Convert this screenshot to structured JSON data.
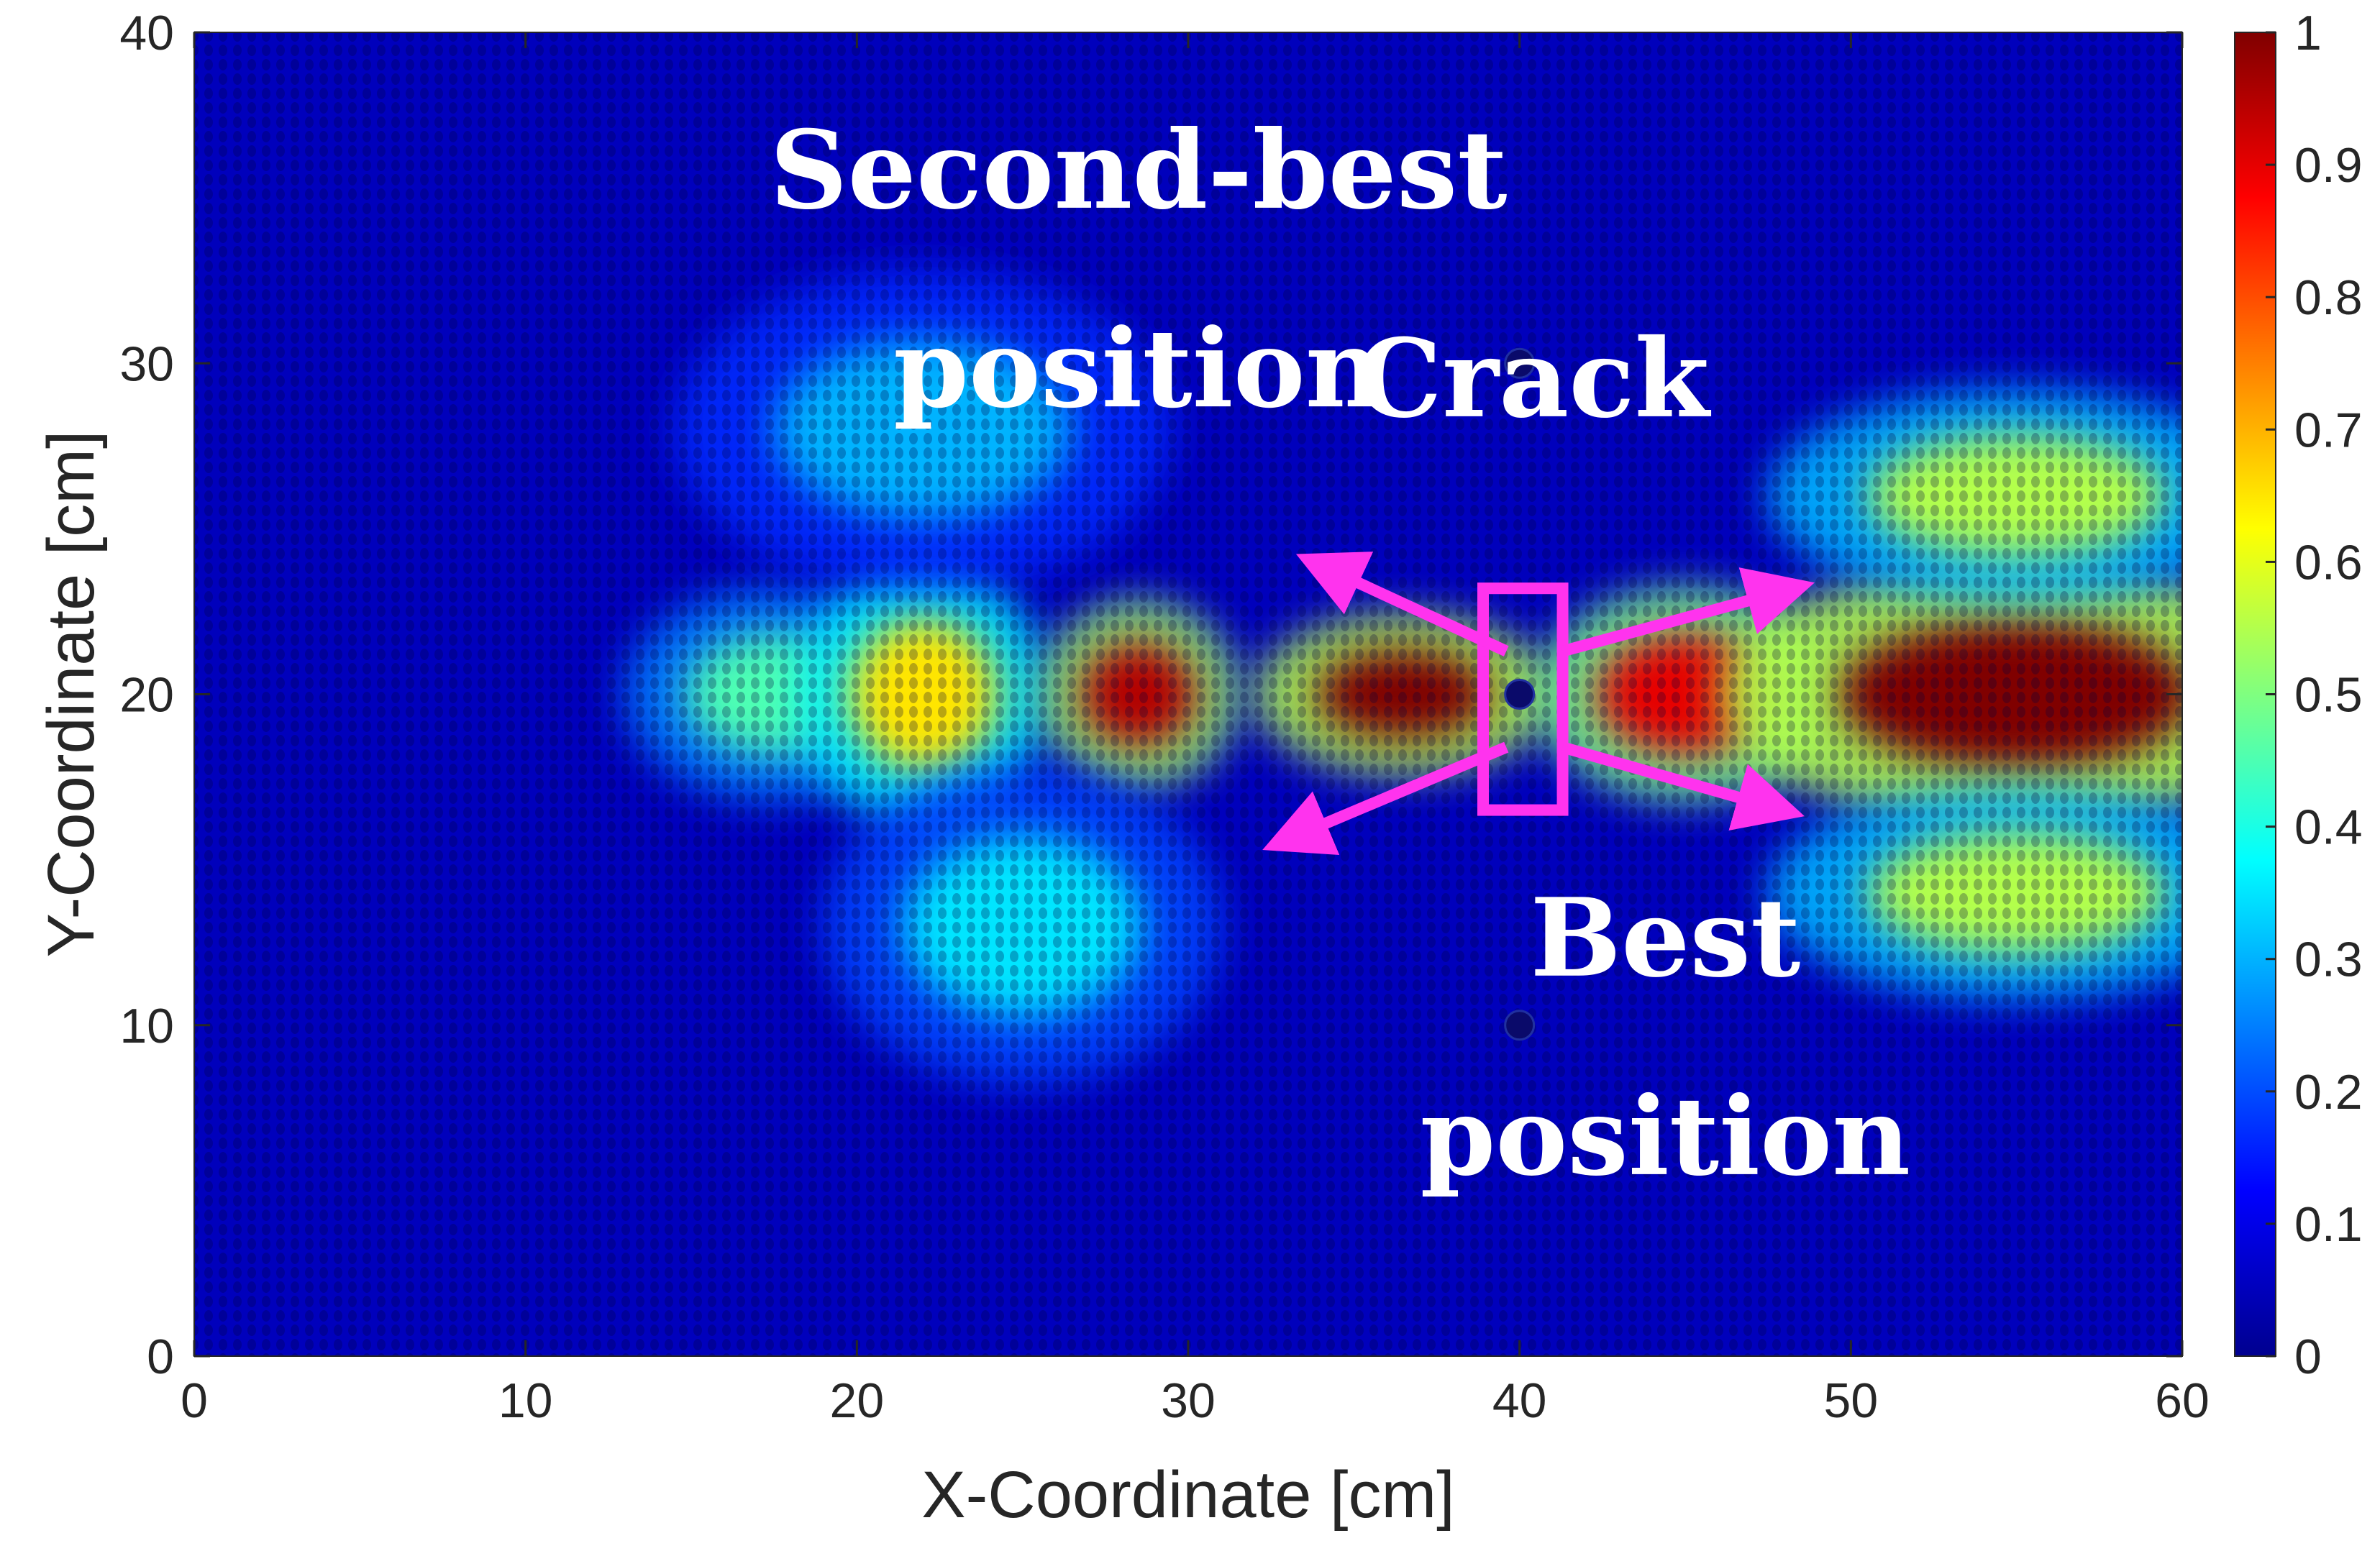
{
  "chart_data": {
    "type": "heatmap",
    "title": "",
    "xlabel": "X-Coordinate [cm]",
    "ylabel": "Y-Coordinate [cm]",
    "xlim": [
      0,
      60
    ],
    "ylim": [
      0,
      40
    ],
    "xticks": [
      "0",
      "10",
      "20",
      "30",
      "40",
      "50",
      "60"
    ],
    "yticks": [
      "0",
      "10",
      "20",
      "30",
      "40"
    ],
    "colorbar": {
      "range": [
        0,
        1
      ],
      "ticks": [
        "0",
        "0.1",
        "0.2",
        "0.3",
        "0.4",
        "0.5",
        "0.6",
        "0.7",
        "0.8",
        "0.9",
        "1"
      ],
      "colormap": "jet"
    },
    "field": {
      "description_source": "wave-field amplitude map",
      "background_value": 0.05,
      "features": [
        {
          "x": 17.5,
          "y": 20,
          "width": 6,
          "height": 4,
          "value": 0.45
        },
        {
          "x": 22,
          "y": 20,
          "width": 5,
          "height": 5,
          "value": 0.65
        },
        {
          "x": 28.5,
          "y": 20,
          "width": 4,
          "height": 3.5,
          "value": 0.95
        },
        {
          "x": 36.5,
          "y": 20,
          "width": 6,
          "height": 3,
          "value": 1.0
        },
        {
          "x": 45,
          "y": 20,
          "width": 6,
          "height": 4,
          "value": 0.9
        },
        {
          "x": 55,
          "y": 20,
          "width": 12,
          "height": 5,
          "value": 1.0
        },
        {
          "x": 55,
          "y": 26,
          "width": 10,
          "height": 4,
          "value": 0.55
        },
        {
          "x": 55,
          "y": 14,
          "width": 10,
          "height": 4,
          "value": 0.55
        },
        {
          "x": 25,
          "y": 13,
          "width": 8,
          "height": 6,
          "value": 0.35
        },
        {
          "x": 22,
          "y": 28,
          "width": 10,
          "height": 6,
          "value": 0.3
        }
      ]
    },
    "crack": {
      "x": 40,
      "y": 20,
      "x_range": [
        38.9,
        41.3
      ],
      "y_range": [
        16.5,
        23.2
      ]
    },
    "markers": [
      {
        "x": 40,
        "y": 30
      },
      {
        "x": 40,
        "y": 20
      },
      {
        "x": 40,
        "y": 10
      }
    ],
    "arrows": [
      {
        "from": [
          39.6,
          21.3
        ],
        "to": [
          34.2,
          23.8
        ]
      },
      {
        "from": [
          39.6,
          18.4
        ],
        "to": [
          33.2,
          15.7
        ]
      },
      {
        "from": [
          41.3,
          21.3
        ],
        "to": [
          47.9,
          23.1
        ]
      },
      {
        "from": [
          41.3,
          18.4
        ],
        "to": [
          47.6,
          16.6
        ]
      }
    ],
    "annotations": [
      {
        "id": "second-best-line1",
        "text": "Second-best",
        "x": 28.5,
        "y": 34.7
      },
      {
        "id": "second-best-line2",
        "text": "position",
        "x": 28.5,
        "y": 28.7
      },
      {
        "id": "crack-label",
        "text": "Crack",
        "x": 40.4,
        "y": 28.4
      },
      {
        "id": "best-line1",
        "text": "Best",
        "x": 44.4,
        "y": 11.5
      },
      {
        "id": "best-line2",
        "text": "position",
        "x": 44.4,
        "y": 5.5
      }
    ],
    "colors": {
      "annotation_overlay": "#ff33ee",
      "annotation_text": "#ffffff"
    }
  }
}
